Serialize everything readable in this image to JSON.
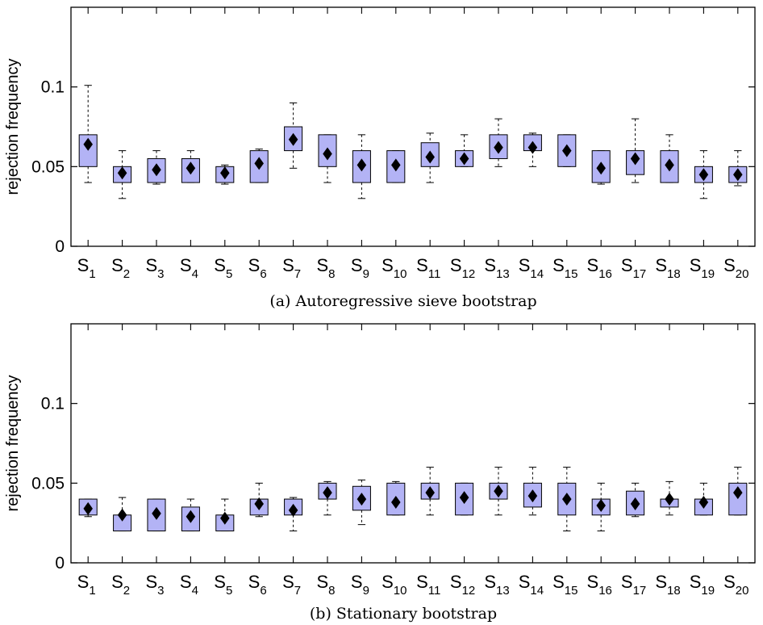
{
  "chart_data": [
    {
      "type": "boxplot",
      "caption": "(a) Autoregressive sieve bootstrap",
      "ylabel": "rejection frequency",
      "ylim": [
        0,
        0.15
      ],
      "yticks": [
        0,
        0.05,
        0.1
      ],
      "ytick_labels": [
        "0",
        "0.05",
        "0.1"
      ],
      "grid": false,
      "box_color": "#b3b3f5",
      "categories": [
        {
          "base": "S",
          "sub": "1"
        },
        {
          "base": "S",
          "sub": "2"
        },
        {
          "base": "S",
          "sub": "3"
        },
        {
          "base": "S",
          "sub": "4"
        },
        {
          "base": "S",
          "sub": "5"
        },
        {
          "base": "S",
          "sub": "6"
        },
        {
          "base": "S",
          "sub": "7"
        },
        {
          "base": "S",
          "sub": "8"
        },
        {
          "base": "S",
          "sub": "9"
        },
        {
          "base": "S",
          "sub": "10"
        },
        {
          "base": "S",
          "sub": "11"
        },
        {
          "base": "S",
          "sub": "12"
        },
        {
          "base": "S",
          "sub": "13"
        },
        {
          "base": "S",
          "sub": "14"
        },
        {
          "base": "S",
          "sub": "15"
        },
        {
          "base": "S",
          "sub": "16"
        },
        {
          "base": "S",
          "sub": "17"
        },
        {
          "base": "S",
          "sub": "18"
        },
        {
          "base": "S",
          "sub": "19"
        },
        {
          "base": "S",
          "sub": "20"
        }
      ],
      "boxes": [
        {
          "whisker_low": 0.04,
          "q1": 0.05,
          "q3": 0.07,
          "whisker_high": 0.101,
          "mean": 0.064
        },
        {
          "whisker_low": 0.03,
          "q1": 0.04,
          "q3": 0.05,
          "whisker_high": 0.06,
          "mean": 0.046
        },
        {
          "whisker_low": 0.039,
          "q1": 0.04,
          "q3": 0.055,
          "whisker_high": 0.06,
          "mean": 0.048
        },
        {
          "whisker_low": 0.04,
          "q1": 0.04,
          "q3": 0.055,
          "whisker_high": 0.06,
          "mean": 0.049
        },
        {
          "whisker_low": 0.039,
          "q1": 0.04,
          "q3": 0.05,
          "whisker_high": 0.051,
          "mean": 0.046
        },
        {
          "whisker_low": 0.04,
          "q1": 0.04,
          "q3": 0.06,
          "whisker_high": 0.061,
          "mean": 0.052
        },
        {
          "whisker_low": 0.049,
          "q1": 0.06,
          "q3": 0.075,
          "whisker_high": 0.09,
          "mean": 0.067
        },
        {
          "whisker_low": 0.04,
          "q1": 0.05,
          "q3": 0.07,
          "whisker_high": 0.07,
          "mean": 0.058
        },
        {
          "whisker_low": 0.03,
          "q1": 0.04,
          "q3": 0.06,
          "whisker_high": 0.07,
          "mean": 0.051
        },
        {
          "whisker_low": 0.04,
          "q1": 0.04,
          "q3": 0.06,
          "whisker_high": 0.06,
          "mean": 0.051
        },
        {
          "whisker_low": 0.04,
          "q1": 0.05,
          "q3": 0.065,
          "whisker_high": 0.071,
          "mean": 0.056
        },
        {
          "whisker_low": 0.05,
          "q1": 0.05,
          "q3": 0.06,
          "whisker_high": 0.07,
          "mean": 0.055
        },
        {
          "whisker_low": 0.05,
          "q1": 0.055,
          "q3": 0.07,
          "whisker_high": 0.08,
          "mean": 0.062
        },
        {
          "whisker_low": 0.05,
          "q1": 0.06,
          "q3": 0.07,
          "whisker_high": 0.071,
          "mean": 0.062
        },
        {
          "whisker_low": 0.05,
          "q1": 0.05,
          "q3": 0.07,
          "whisker_high": 0.07,
          "mean": 0.06
        },
        {
          "whisker_low": 0.039,
          "q1": 0.04,
          "q3": 0.06,
          "whisker_high": 0.06,
          "mean": 0.049
        },
        {
          "whisker_low": 0.04,
          "q1": 0.045,
          "q3": 0.06,
          "whisker_high": 0.08,
          "mean": 0.055
        },
        {
          "whisker_low": 0.04,
          "q1": 0.04,
          "q3": 0.06,
          "whisker_high": 0.07,
          "mean": 0.051
        },
        {
          "whisker_low": 0.03,
          "q1": 0.04,
          "q3": 0.05,
          "whisker_high": 0.06,
          "mean": 0.045
        },
        {
          "whisker_low": 0.038,
          "q1": 0.04,
          "q3": 0.05,
          "whisker_high": 0.06,
          "mean": 0.045
        }
      ]
    },
    {
      "type": "boxplot",
      "caption": "(b) Stationary bootstrap",
      "ylabel": "rejection frequency",
      "ylim": [
        0,
        0.15
      ],
      "yticks": [
        0,
        0.05,
        0.1
      ],
      "ytick_labels": [
        "0",
        "0.05",
        "0.1"
      ],
      "grid": false,
      "box_color": "#b3b3f5",
      "categories": [
        {
          "base": "S",
          "sub": "1"
        },
        {
          "base": "S",
          "sub": "2"
        },
        {
          "base": "S",
          "sub": "3"
        },
        {
          "base": "S",
          "sub": "4"
        },
        {
          "base": "S",
          "sub": "5"
        },
        {
          "base": "S",
          "sub": "6"
        },
        {
          "base": "S",
          "sub": "7"
        },
        {
          "base": "S",
          "sub": "8"
        },
        {
          "base": "S",
          "sub": "9"
        },
        {
          "base": "S",
          "sub": "10"
        },
        {
          "base": "S",
          "sub": "11"
        },
        {
          "base": "S",
          "sub": "12"
        },
        {
          "base": "S",
          "sub": "13"
        },
        {
          "base": "S",
          "sub": "14"
        },
        {
          "base": "S",
          "sub": "15"
        },
        {
          "base": "S",
          "sub": "16"
        },
        {
          "base": "S",
          "sub": "17"
        },
        {
          "base": "S",
          "sub": "18"
        },
        {
          "base": "S",
          "sub": "19"
        },
        {
          "base": "S",
          "sub": "20"
        }
      ],
      "boxes": [
        {
          "whisker_low": 0.029,
          "q1": 0.03,
          "q3": 0.04,
          "whisker_high": 0.04,
          "mean": 0.034
        },
        {
          "whisker_low": 0.02,
          "q1": 0.02,
          "q3": 0.03,
          "whisker_high": 0.041,
          "mean": 0.03
        },
        {
          "whisker_low": 0.02,
          "q1": 0.02,
          "q3": 0.04,
          "whisker_high": 0.04,
          "mean": 0.031
        },
        {
          "whisker_low": 0.02,
          "q1": 0.02,
          "q3": 0.035,
          "whisker_high": 0.04,
          "mean": 0.029
        },
        {
          "whisker_low": 0.02,
          "q1": 0.02,
          "q3": 0.03,
          "whisker_high": 0.04,
          "mean": 0.028
        },
        {
          "whisker_low": 0.029,
          "q1": 0.03,
          "q3": 0.04,
          "whisker_high": 0.05,
          "mean": 0.037
        },
        {
          "whisker_low": 0.02,
          "q1": 0.03,
          "q3": 0.04,
          "whisker_high": 0.041,
          "mean": 0.033
        },
        {
          "whisker_low": 0.03,
          "q1": 0.04,
          "q3": 0.05,
          "whisker_high": 0.051,
          "mean": 0.044
        },
        {
          "whisker_low": 0.024,
          "q1": 0.033,
          "q3": 0.048,
          "whisker_high": 0.052,
          "mean": 0.04
        },
        {
          "whisker_low": 0.03,
          "q1": 0.03,
          "q3": 0.05,
          "whisker_high": 0.051,
          "mean": 0.038
        },
        {
          "whisker_low": 0.03,
          "q1": 0.04,
          "q3": 0.05,
          "whisker_high": 0.06,
          "mean": 0.044
        },
        {
          "whisker_low": 0.03,
          "q1": 0.03,
          "q3": 0.05,
          "whisker_high": 0.05,
          "mean": 0.041
        },
        {
          "whisker_low": 0.03,
          "q1": 0.04,
          "q3": 0.05,
          "whisker_high": 0.06,
          "mean": 0.045
        },
        {
          "whisker_low": 0.03,
          "q1": 0.035,
          "q3": 0.05,
          "whisker_high": 0.06,
          "mean": 0.042
        },
        {
          "whisker_low": 0.02,
          "q1": 0.03,
          "q3": 0.05,
          "whisker_high": 0.06,
          "mean": 0.04
        },
        {
          "whisker_low": 0.02,
          "q1": 0.03,
          "q3": 0.04,
          "whisker_high": 0.05,
          "mean": 0.036
        },
        {
          "whisker_low": 0.029,
          "q1": 0.03,
          "q3": 0.045,
          "whisker_high": 0.05,
          "mean": 0.037
        },
        {
          "whisker_low": 0.03,
          "q1": 0.035,
          "q3": 0.04,
          "whisker_high": 0.051,
          "mean": 0.04
        },
        {
          "whisker_low": 0.03,
          "q1": 0.03,
          "q3": 0.04,
          "whisker_high": 0.05,
          "mean": 0.038
        },
        {
          "whisker_low": 0.03,
          "q1": 0.03,
          "q3": 0.05,
          "whisker_high": 0.06,
          "mean": 0.044
        }
      ]
    }
  ]
}
